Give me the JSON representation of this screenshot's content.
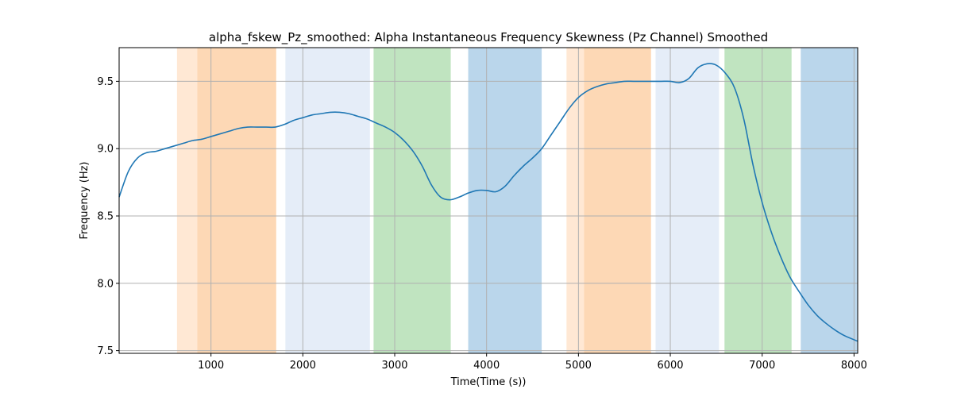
{
  "chart_data": {
    "type": "line",
    "title": "alpha_fskew_Pz_smoothed: Alpha Instantaneous Frequency Skewness (Pz Channel) Smoothed",
    "xlabel": "Time(Time (s))",
    "ylabel": "Frequency (Hz)",
    "xlim": [
      0,
      8040
    ],
    "ylim": [
      7.48,
      9.75
    ],
    "x_ticks": [
      1000,
      2000,
      3000,
      4000,
      5000,
      6000,
      7000,
      8000
    ],
    "y_ticks": [
      7.5,
      8.0,
      8.5,
      9.0,
      9.5
    ],
    "x_tick_labels": [
      "1000",
      "2000",
      "3000",
      "4000",
      "5000",
      "6000",
      "7000",
      "8000"
    ],
    "y_tick_labels": [
      "7.5",
      "8.0",
      "8.5",
      "9.0",
      "9.5"
    ],
    "grid": true,
    "series": [
      {
        "color": "#1f77b4",
        "x": [
          0,
          100,
          200,
          300,
          400,
          500,
          600,
          700,
          800,
          900,
          1000,
          1100,
          1200,
          1300,
          1400,
          1500,
          1600,
          1700,
          1800,
          1900,
          2000,
          2100,
          2200,
          2300,
          2400,
          2500,
          2600,
          2700,
          2800,
          2900,
          3000,
          3100,
          3200,
          3300,
          3400,
          3500,
          3600,
          3700,
          3800,
          3900,
          4000,
          4100,
          4200,
          4300,
          4400,
          4500,
          4600,
          4700,
          4800,
          4900,
          5000,
          5100,
          5200,
          5300,
          5400,
          5500,
          5600,
          5700,
          5800,
          5900,
          6000,
          6100,
          6200,
          6300,
          6400,
          6500,
          6600,
          6700,
          6800,
          6900,
          7000,
          7100,
          7200,
          7300,
          7400,
          7500,
          7600,
          7700,
          7800,
          7900,
          8040
        ],
        "y": [
          8.64,
          8.83,
          8.93,
          8.97,
          8.98,
          9.0,
          9.02,
          9.04,
          9.06,
          9.07,
          9.09,
          9.11,
          9.13,
          9.15,
          9.16,
          9.16,
          9.16,
          9.16,
          9.18,
          9.21,
          9.23,
          9.25,
          9.26,
          9.27,
          9.27,
          9.26,
          9.24,
          9.22,
          9.19,
          9.16,
          9.12,
          9.06,
          8.98,
          8.87,
          8.73,
          8.64,
          8.62,
          8.64,
          8.67,
          8.69,
          8.69,
          8.68,
          8.72,
          8.8,
          8.87,
          8.93,
          9.0,
          9.1,
          9.2,
          9.3,
          9.38,
          9.43,
          9.46,
          9.48,
          9.49,
          9.5,
          9.5,
          9.5,
          9.5,
          9.5,
          9.5,
          9.49,
          9.52,
          9.6,
          9.63,
          9.62,
          9.56,
          9.45,
          9.22,
          8.88,
          8.6,
          8.38,
          8.2,
          8.05,
          7.94,
          7.84,
          7.76,
          7.7,
          7.65,
          7.61,
          7.57
        ]
      }
    ],
    "bands": [
      {
        "x0": 630,
        "x1": 850,
        "color": "#ffe8d4"
      },
      {
        "x0": 850,
        "x1": 1710,
        "color": "#fdd8b5"
      },
      {
        "x0": 1810,
        "x1": 2730,
        "color": "#e5edf8"
      },
      {
        "x0": 2770,
        "x1": 3610,
        "color": "#c0e4c0"
      },
      {
        "x0": 3800,
        "x1": 4600,
        "color": "#bad6eb"
      },
      {
        "x0": 4870,
        "x1": 5060,
        "color": "#ffe8d4"
      },
      {
        "x0": 5060,
        "x1": 5790,
        "color": "#fdd8b5"
      },
      {
        "x0": 5840,
        "x1": 6530,
        "color": "#e5edf8"
      },
      {
        "x0": 6590,
        "x1": 7320,
        "color": "#c0e4c0"
      },
      {
        "x0": 7420,
        "x1": 8040,
        "color": "#bad6eb"
      }
    ]
  }
}
